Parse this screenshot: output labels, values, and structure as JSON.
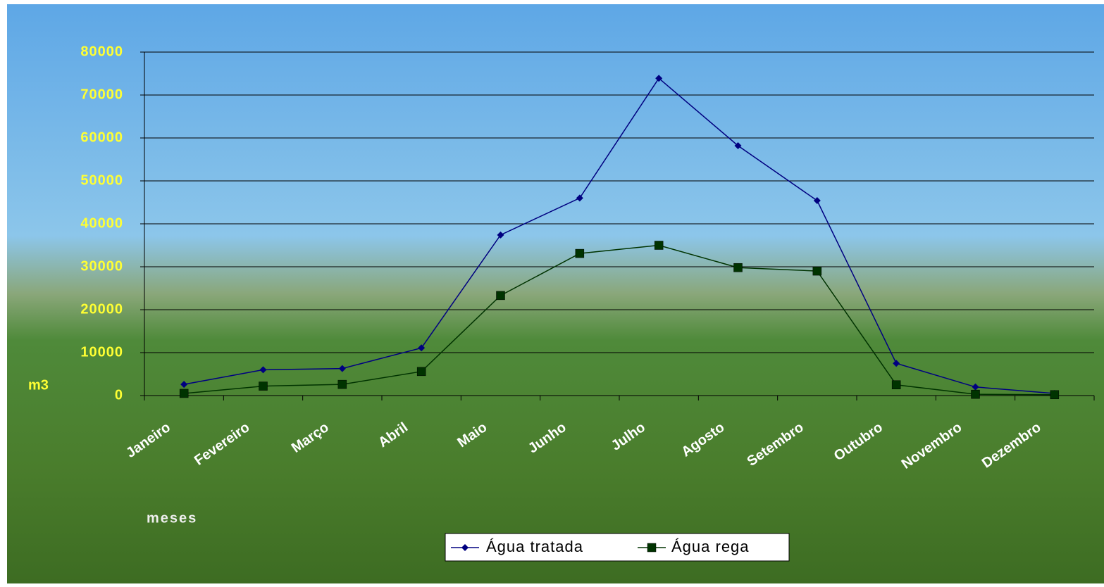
{
  "chart_data": {
    "type": "line",
    "y_label": "m3",
    "x_label": "meses",
    "categories": [
      "Janeiro",
      "Fevereiro",
      "Março",
      "Abril",
      "Maio",
      "Junho",
      "Julho",
      "Agosto",
      "Setembro",
      "Outubro",
      "Novembro",
      "Dezembro"
    ],
    "series": [
      {
        "name": "Água tratada",
        "color": "#000080",
        "marker": "diamond",
        "values": [
          2600,
          6000,
          6300,
          11100,
          37400,
          46000,
          73900,
          58200,
          45400,
          7500,
          2000,
          500
        ]
      },
      {
        "name": "Água rega",
        "color": "#003300",
        "marker": "square",
        "values": [
          500,
          2200,
          2600,
          5600,
          23300,
          33100,
          35000,
          29800,
          29000,
          2500,
          300,
          200
        ]
      }
    ],
    "ylim": [
      0,
      80000
    ],
    "yticks": [
      0,
      10000,
      20000,
      30000,
      40000,
      50000,
      60000,
      70000,
      80000
    ],
    "grid": true
  }
}
